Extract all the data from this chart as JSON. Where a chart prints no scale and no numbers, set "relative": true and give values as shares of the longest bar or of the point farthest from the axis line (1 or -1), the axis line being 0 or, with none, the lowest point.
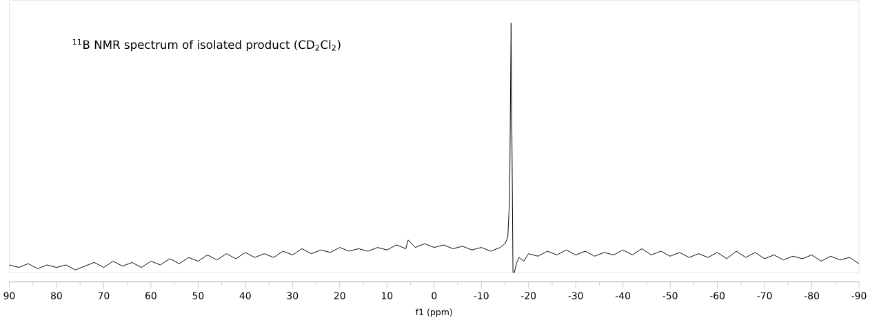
{
  "chart_data": {
    "type": "line",
    "relative": true,
    "title": "$^{11}$B NMR spectrum of isolated product (CD$_{2}$Cl$_{2}$)",
    "xlabel": "f1 (ppm)",
    "xlim": [
      90,
      -90
    ],
    "xticks": [
      90,
      80,
      70,
      60,
      50,
      40,
      30,
      20,
      10,
      0,
      -10,
      -20,
      -30,
      -40,
      -50,
      -60,
      -70,
      -80,
      -90
    ],
    "x": [
      90,
      88,
      86,
      84,
      82,
      80,
      78,
      76,
      74,
      72,
      70,
      68,
      66,
      64,
      62,
      60,
      58,
      56,
      54,
      52,
      50,
      48,
      46,
      44,
      42,
      40,
      38,
      36,
      34,
      32,
      30,
      28,
      26,
      24,
      22,
      20,
      18,
      16,
      14,
      12,
      10,
      8,
      6,
      5.5,
      4,
      2,
      0,
      -2,
      -4,
      -6,
      -8,
      -10,
      -12,
      -14,
      -15,
      -15.6,
      -16.0,
      -16.3,
      -16.5,
      -16.7,
      -17,
      -17.5,
      -18,
      -19,
      -20,
      -22,
      -24,
      -26,
      -28,
      -30,
      -32,
      -34,
      -36,
      -38,
      -40,
      -42,
      -44,
      -46,
      -48,
      -50,
      -52,
      -54,
      -56,
      -58,
      -60,
      -62,
      -64,
      -66,
      -68,
      -70,
      -72,
      -74,
      -76,
      -78,
      -80,
      -82,
      -84,
      -86,
      -88,
      -90
    ],
    "series": [
      {
        "color": "#000000",
        "values": [
          0.03,
          0.02,
          0.035,
          0.015,
          0.03,
          0.02,
          0.03,
          0.01,
          0.025,
          0.04,
          0.02,
          0.045,
          0.025,
          0.04,
          0.02,
          0.045,
          0.03,
          0.055,
          0.035,
          0.06,
          0.045,
          0.07,
          0.05,
          0.075,
          0.055,
          0.08,
          0.06,
          0.075,
          0.06,
          0.085,
          0.07,
          0.095,
          0.075,
          0.09,
          0.08,
          0.1,
          0.085,
          0.095,
          0.085,
          0.1,
          0.09,
          0.11,
          0.095,
          0.13,
          0.1,
          0.115,
          0.1,
          0.11,
          0.095,
          0.105,
          0.09,
          0.1,
          0.085,
          0.1,
          0.115,
          0.14,
          0.3,
          1.0,
          0.5,
          0.0,
          0.0,
          0.04,
          0.06,
          0.045,
          0.075,
          0.065,
          0.085,
          0.07,
          0.09,
          0.07,
          0.085,
          0.065,
          0.08,
          0.07,
          0.09,
          0.07,
          0.095,
          0.07,
          0.085,
          0.065,
          0.08,
          0.06,
          0.075,
          0.06,
          0.08,
          0.055,
          0.085,
          0.06,
          0.08,
          0.055,
          0.07,
          0.05,
          0.065,
          0.055,
          0.07,
          0.045,
          0.065,
          0.05,
          0.06,
          0.035
        ]
      }
    ]
  }
}
